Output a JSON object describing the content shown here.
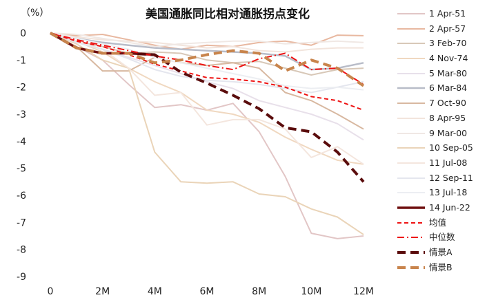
{
  "chart_data": {
    "type": "line",
    "title": "美国通胀同比相对通胀拐点变化",
    "y_unit_label": "（%）",
    "ylim": [
      -9,
      0
    ],
    "yticks": [
      0,
      -1,
      -2,
      -3,
      -4,
      -5,
      -6,
      -7,
      -8,
      -9
    ],
    "xlim": [
      0,
      12
    ],
    "xticks": [
      {
        "value": 0,
        "label": "0"
      },
      {
        "value": 2,
        "label": "2M"
      },
      {
        "value": 4,
        "label": "4M"
      },
      {
        "value": 6,
        "label": "6M"
      },
      {
        "value": 8,
        "label": "8M"
      },
      {
        "value": 10,
        "label": "10M"
      },
      {
        "value": 12,
        "label": "12M"
      }
    ],
    "series": [
      {
        "name": "1 Apr-51",
        "color": "#e2c6c6",
        "dash": "solid",
        "width": 2,
        "x": [
          0,
          1,
          2,
          3,
          4,
          5,
          6,
          7,
          8,
          9,
          10,
          11,
          12
        ],
        "values": [
          0,
          -0.5,
          -1.0,
          -1.9,
          -2.75,
          -2.65,
          -2.85,
          -2.6,
          -3.65,
          -5.3,
          -7.4,
          -7.6,
          -7.5
        ]
      },
      {
        "name": "2 Apr-57",
        "color": "#e8b8a0",
        "dash": "solid",
        "width": 2,
        "x": [
          0,
          1,
          2,
          3,
          4,
          5,
          6,
          7,
          8,
          9,
          10,
          11,
          12
        ],
        "values": [
          0,
          -0.1,
          -0.05,
          -0.25,
          -0.45,
          -0.6,
          -0.45,
          -0.5,
          -0.35,
          -0.3,
          -0.45,
          -0.08,
          -0.1
        ]
      },
      {
        "name": "3 Feb-70",
        "color": "#d8c8b8",
        "dash": "solid",
        "width": 2,
        "x": [
          0,
          1,
          2,
          3,
          4,
          5,
          6,
          7,
          8,
          9,
          10,
          11,
          12
        ],
        "values": [
          0,
          -0.3,
          -0.5,
          -0.75,
          -0.7,
          -0.75,
          -1.0,
          -1.1,
          -1.05,
          -1.3,
          -1.55,
          -1.35,
          -1.3
        ]
      },
      {
        "name": "4 Nov-74",
        "color": "#f0d8c0",
        "dash": "solid",
        "width": 2,
        "x": [
          0,
          1,
          2,
          3,
          4,
          5,
          6,
          7,
          8,
          9,
          10,
          11,
          12
        ],
        "values": [
          0,
          -0.3,
          -0.7,
          -1.3,
          -1.8,
          -2.2,
          -2.85,
          -3.0,
          -3.3,
          -3.85,
          -4.3,
          -4.7,
          -4.85
        ]
      },
      {
        "name": "5 Mar-80",
        "color": "#e8e0ea",
        "dash": "solid",
        "width": 2,
        "x": [
          0,
          1,
          2,
          3,
          4,
          5,
          6,
          7,
          8,
          9,
          10,
          11,
          12
        ],
        "values": [
          0,
          -0.3,
          -0.6,
          -0.9,
          -1.2,
          -1.5,
          -1.8,
          -2.05,
          -2.5,
          -2.75,
          -3.0,
          -3.35,
          -3.95
        ]
      },
      {
        "name": "6 Mar-84",
        "color": "#b8bcc8",
        "dash": "solid",
        "width": 2.5,
        "x": [
          0,
          1,
          2,
          3,
          4,
          5,
          6,
          7,
          8,
          9,
          10,
          11,
          12
        ],
        "values": [
          0,
          -0.2,
          -0.35,
          -0.45,
          -0.55,
          -0.6,
          -0.65,
          -0.7,
          -0.75,
          -0.85,
          -1.35,
          -1.3,
          -1.1
        ]
      },
      {
        "name": "7 Oct-90",
        "color": "#d8b8a0",
        "dash": "solid",
        "width": 2,
        "x": [
          0,
          1,
          2,
          3,
          4,
          5,
          6,
          7,
          8,
          9,
          10,
          11,
          12
        ],
        "values": [
          0,
          -0.5,
          -1.4,
          -1.4,
          -0.9,
          -1.1,
          -1.2,
          -1.1,
          -1.3,
          -2.2,
          -2.5,
          -3.0,
          -3.55
        ]
      },
      {
        "name": "8 Apr-95",
        "color": "#f2e4dc",
        "dash": "solid",
        "width": 2,
        "x": [
          0,
          1,
          2,
          3,
          4,
          5,
          6,
          7,
          8,
          9,
          10,
          11,
          12
        ],
        "values": [
          0,
          -0.15,
          -0.25,
          -0.3,
          -0.35,
          -0.45,
          -0.55,
          -0.5,
          -0.65,
          -0.7,
          -0.6,
          -0.55,
          -0.55
        ]
      },
      {
        "name": "9 Mar-00",
        "color": "#f0e8e4",
        "dash": "solid",
        "width": 2,
        "x": [
          0,
          1,
          2,
          3,
          4,
          5,
          6,
          7,
          8,
          9,
          10,
          11,
          12
        ],
        "values": [
          0,
          -0.05,
          -0.2,
          -0.35,
          -0.5,
          -0.4,
          -0.35,
          -0.3,
          -0.3,
          -0.4,
          -0.35,
          -0.3,
          -0.35
        ]
      },
      {
        "name": "10 Sep-05",
        "color": "#ead4b8",
        "dash": "solid",
        "width": 2,
        "x": [
          0,
          1,
          2,
          3,
          4,
          5,
          6,
          7,
          8,
          9,
          10,
          11,
          12
        ],
        "values": [
          0,
          -0.4,
          -1.0,
          -1.3,
          -4.4,
          -5.5,
          -5.55,
          -5.5,
          -5.95,
          -6.05,
          -6.5,
          -6.8,
          -7.45
        ]
      },
      {
        "name": "11 Jul-08",
        "color": "#f4e6de",
        "dash": "solid",
        "width": 2,
        "x": [
          0,
          1,
          2,
          3,
          4,
          5,
          6,
          7,
          8,
          9,
          10,
          11,
          12
        ],
        "values": [
          0,
          -0.3,
          -0.6,
          -1.3,
          -2.3,
          -2.2,
          -3.4,
          -3.2,
          -3.2,
          -3.55,
          -4.6,
          -4.2,
          -4.85
        ]
      },
      {
        "name": "12 Sep-11",
        "color": "#e4e6ee",
        "dash": "solid",
        "width": 2,
        "x": [
          0,
          1,
          2,
          3,
          4,
          5,
          6,
          7,
          8,
          9,
          10,
          11,
          12
        ],
        "values": [
          0,
          -0.35,
          -0.6,
          -0.95,
          -1.35,
          -1.6,
          -1.75,
          -1.8,
          -1.9,
          -2.05,
          -2.2,
          -2.0,
          -1.8
        ]
      },
      {
        "name": "13 Jul-18",
        "color": "#eceef2",
        "dash": "solid",
        "width": 2,
        "x": [
          0,
          1,
          2,
          3,
          4,
          5,
          6,
          7,
          8,
          9,
          10,
          11,
          12
        ],
        "values": [
          0,
          -0.2,
          -0.4,
          -0.6,
          -0.9,
          -1.1,
          -1.3,
          -1.5,
          -1.7,
          -1.95,
          -2.05,
          -2.0,
          -2.1
        ]
      },
      {
        "name": "14 Jun-22",
        "color": "#6e0e0e",
        "dash": "solid",
        "width": 3.5,
        "x": [
          0,
          1,
          2,
          3,
          4
        ],
        "values": [
          0,
          -0.55,
          -0.75,
          -0.75,
          -0.8
        ]
      },
      {
        "name": "均值",
        "color": "#ee1111",
        "dash": "dash",
        "width": 2,
        "x": [
          0,
          1,
          2,
          3,
          4,
          5,
          6,
          7,
          8,
          9,
          10,
          11,
          12
        ],
        "values": [
          0,
          -0.3,
          -0.5,
          -0.8,
          -1.15,
          -1.4,
          -1.65,
          -1.7,
          -1.8,
          -2.0,
          -2.35,
          -2.5,
          -2.85
        ]
      },
      {
        "name": "中位数",
        "color": "#ee1111",
        "dash": "dashdot",
        "width": 2,
        "x": [
          0,
          1,
          2,
          3,
          4,
          5,
          6,
          7,
          8,
          9,
          10,
          11,
          12
        ],
        "values": [
          0,
          -0.25,
          -0.45,
          -0.65,
          -0.85,
          -1.0,
          -1.2,
          -1.35,
          -0.95,
          -0.75,
          -1.35,
          -1.3,
          -1.9
        ]
      },
      {
        "name": "情景A",
        "color": "#5a0c0c",
        "dash": "bigdash",
        "width": 4,
        "x": [
          0,
          1,
          2,
          3,
          4,
          5,
          6,
          7,
          8,
          9,
          10,
          11,
          12
        ],
        "values": [
          0,
          -0.55,
          -0.75,
          -0.75,
          -0.8,
          -1.45,
          -1.85,
          -2.3,
          -2.8,
          -3.5,
          -3.65,
          -4.4,
          -5.5
        ]
      },
      {
        "name": "情景B",
        "color": "#c8844c",
        "dash": "bigdash",
        "width": 4,
        "x": [
          0,
          1,
          2,
          3,
          4,
          5,
          6,
          7,
          8,
          9,
          10,
          11,
          12
        ],
        "values": [
          0,
          -0.55,
          -0.75,
          -0.75,
          -1.1,
          -1.0,
          -0.8,
          -0.65,
          -0.75,
          -1.4,
          -1.0,
          -1.3,
          -1.95
        ]
      }
    ]
  }
}
